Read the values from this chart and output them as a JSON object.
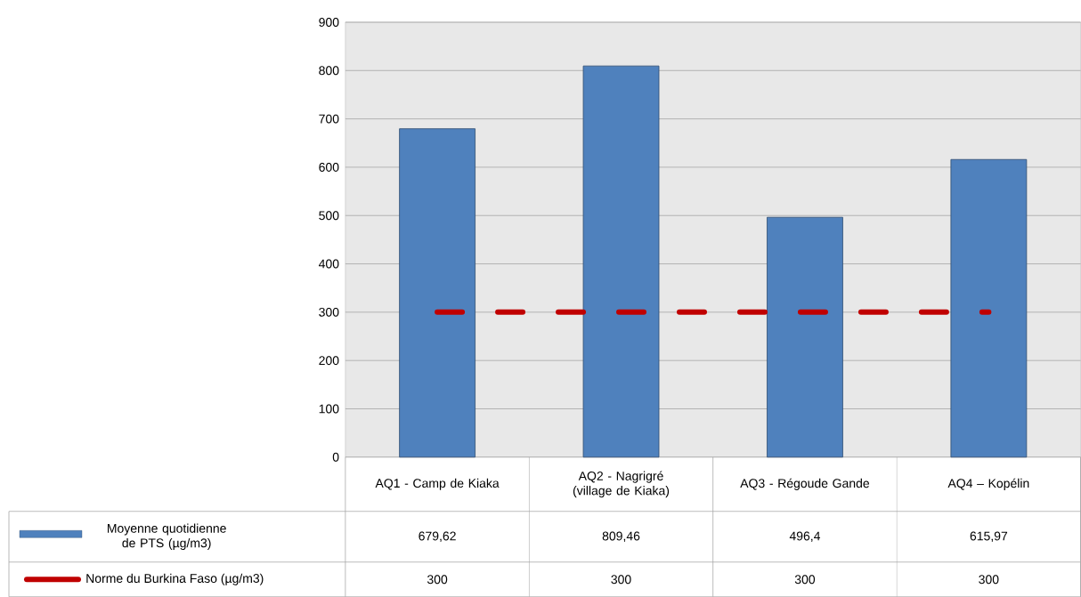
{
  "chart_data": {
    "type": "bar",
    "categories": [
      "AQ1 - Camp de Kiaka",
      "AQ2 - Nagrigré (village de Kiaka)",
      "AQ3 - Régoude Gande",
      "AQ4 – Kopélin"
    ],
    "series": [
      {
        "name": "Moyenne quotidienne de PTS (µg/m3)",
        "color": "#4f81bd",
        "values": [
          679.62,
          809.46,
          496.4,
          615.97
        ],
        "value_labels": [
          "679,62",
          "809,46",
          "496,4",
          "615,97"
        ]
      },
      {
        "name": "Norme du Burkina Faso (µg/m3)",
        "type": "line",
        "color": "#c00000",
        "line_style": "dashed",
        "values": [
          300,
          300,
          300,
          300
        ],
        "value_labels": [
          "300",
          "300",
          "300",
          "300"
        ]
      }
    ],
    "ylim": [
      0,
      900
    ],
    "yticks": [
      0,
      100,
      200,
      300,
      400,
      500,
      600,
      700,
      800,
      900
    ],
    "grid": "y",
    "legend": "bottom"
  }
}
